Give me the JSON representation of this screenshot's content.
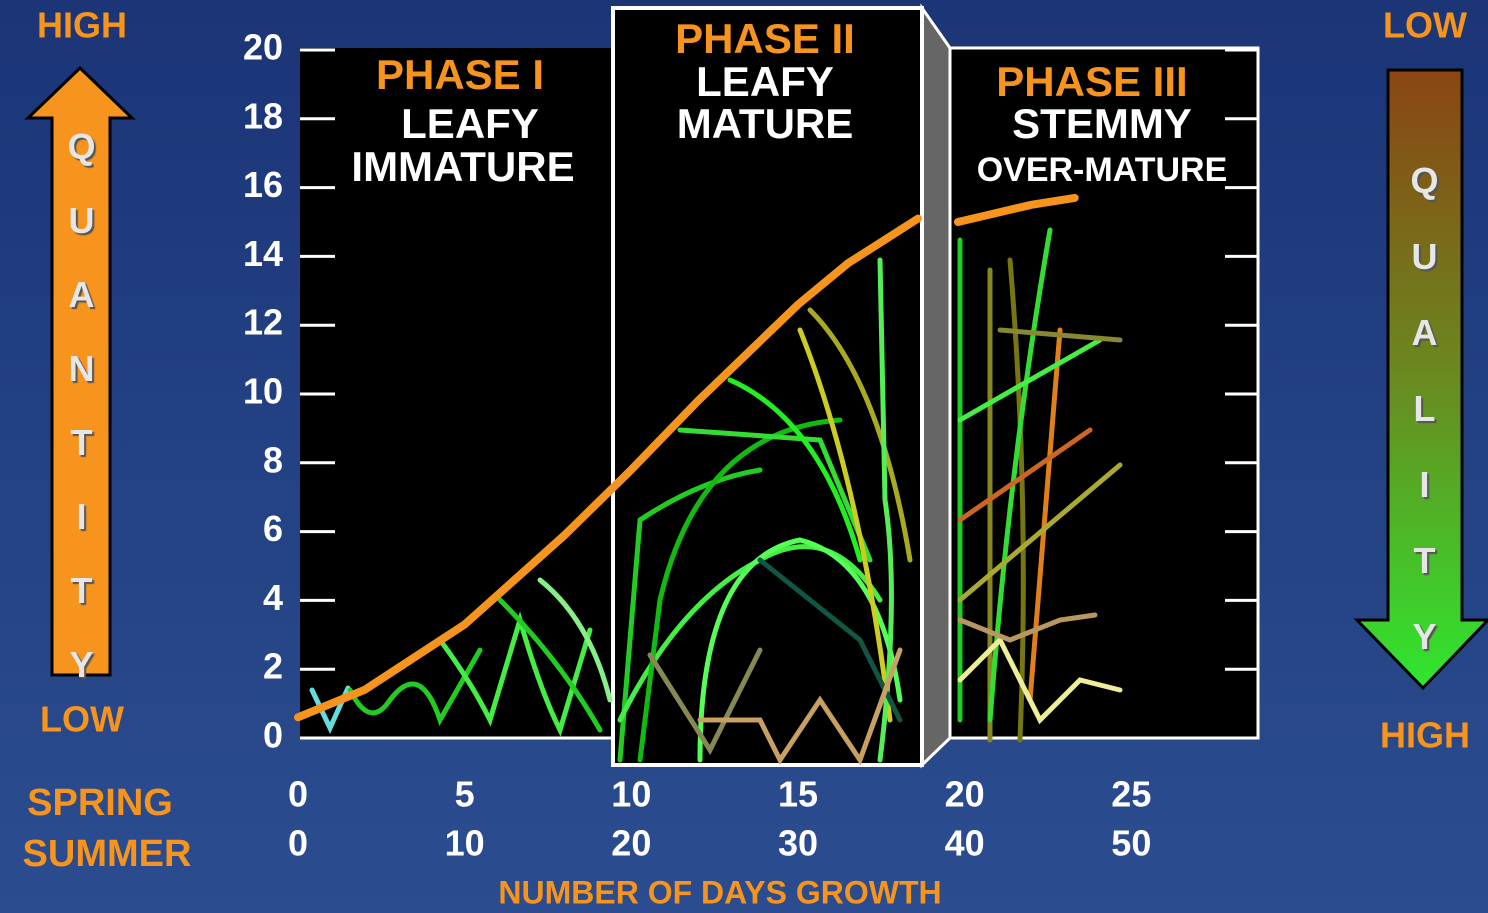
{
  "chart_data": {
    "type": "line",
    "x_label": "NUMBER OF DAYS GROWTH",
    "x_axis_name": "SPRING",
    "x2_axis_name": "SUMMER",
    "x": [
      0,
      2,
      5,
      8,
      10,
      12,
      15,
      16.5,
      18.6,
      19.2,
      19.8,
      22,
      23.3
    ],
    "series": [
      {
        "color": "#f7941d",
        "values": [
          0.6,
          1.4,
          3.3,
          5.9,
          7.8,
          9.8,
          12.6,
          13.8,
          15.1,
          null,
          15.0,
          15.5,
          15.7
        ]
      }
    ],
    "xlim": [
      0,
      28.8
    ],
    "xticks": [
      0,
      5,
      10,
      15,
      20,
      25
    ],
    "x2lim": [
      0,
      57.6
    ],
    "x2ticks": [
      0,
      10,
      20,
      30,
      40,
      50
    ],
    "ylim": [
      0,
      20
    ],
    "yticks": [
      0,
      2,
      4,
      6,
      8,
      10,
      12,
      14,
      16,
      18,
      20
    ],
    "phases": [
      {
        "title": "PHASE I",
        "lines": [
          "LEAFY",
          "IMMATURE"
        ]
      },
      {
        "title": "PHASE II",
        "lines": [
          "LEAFY",
          "MATURE"
        ]
      },
      {
        "title": "PHASE III",
        "lines": [
          "STEMMY",
          "OVER-MATURE"
        ]
      }
    ],
    "left_scale": {
      "top": "HIGH",
      "label": "QUANTITY",
      "bottom": "LOW"
    },
    "right_scale": {
      "top": "LOW",
      "label": "QUALITY",
      "bottom": "HIGH"
    }
  }
}
